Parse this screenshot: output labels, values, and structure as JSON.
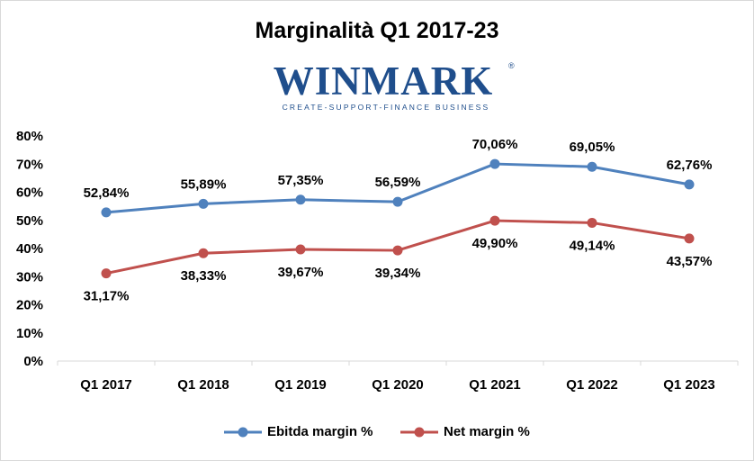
{
  "logo": {
    "name": "WINMARK",
    "registered": "®",
    "tagline": "CREATE-SUPPORT-FINANCE BUSINESS"
  },
  "chart_data": {
    "type": "line",
    "title": "Marginalità Q1 2017-23",
    "xlabel": "",
    "ylabel": "",
    "categories": [
      "Q1 2017",
      "Q1 2018",
      "Q1 2019",
      "Q1 2020",
      "Q1 2021",
      "Q1 2022",
      "Q1 2023"
    ],
    "ylim": [
      0,
      80
    ],
    "yticks": [
      "0%",
      "10%",
      "20%",
      "30%",
      "40%",
      "50%",
      "60%",
      "70%",
      "80%"
    ],
    "grid": false,
    "legend_position": "bottom",
    "series": [
      {
        "name": "Ebitda margin %",
        "color": "#4f81bd",
        "values": [
          52.84,
          55.89,
          57.35,
          56.59,
          70.06,
          69.05,
          62.76
        ],
        "labels": [
          "52,84%",
          "55,89%",
          "57,35%",
          "56,59%",
          "70,06%",
          "69,05%",
          "62,76%"
        ],
        "label_position": "above"
      },
      {
        "name": "Net margin %",
        "color": "#c0504d",
        "values": [
          31.17,
          38.33,
          39.67,
          39.34,
          49.9,
          49.14,
          43.57
        ],
        "labels": [
          "31,17%",
          "38,33%",
          "39,67%",
          "39,34%",
          "49,90%",
          "49,14%",
          "43,57%"
        ],
        "label_position": "below"
      }
    ]
  }
}
